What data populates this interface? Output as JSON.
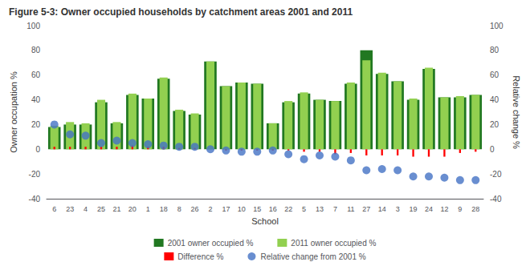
{
  "chart_data": {
    "type": "bar",
    "title": "Figure 5-3: Owner occupied households by catchment areas 2001 and 2011",
    "categories": [
      "6",
      "23",
      "4",
      "25",
      "21",
      "20",
      "1",
      "18",
      "8",
      "26",
      "2",
      "17",
      "10",
      "15",
      "16",
      "22",
      "5",
      "13",
      "7",
      "11",
      "27",
      "14",
      "3",
      "19",
      "24",
      "12",
      "9",
      "28"
    ],
    "series": [
      {
        "name": "2001 owner occupied %",
        "color": "#217821",
        "values": [
          18,
          20,
          20,
          38,
          21,
          44,
          41,
          57,
          31,
          28,
          71,
          51,
          54,
          53,
          21,
          38,
          45,
          40,
          39,
          53,
          80,
          61,
          55,
          40,
          65,
          42,
          42,
          44
        ]
      },
      {
        "name": "2011 owner occupied %",
        "color": "#92d050",
        "values": [
          19,
          22,
          21,
          40,
          22,
          45,
          41,
          58,
          32,
          29,
          71,
          51,
          54,
          53,
          21,
          39,
          46,
          40,
          39,
          54,
          72,
          62,
          55,
          41,
          66,
          42,
          43,
          44
        ]
      },
      {
        "name": "Difference %",
        "color": "#ff0000",
        "values": [
          2,
          2,
          2,
          2,
          2,
          3,
          2,
          2,
          1,
          1,
          0,
          -1,
          -1,
          -1,
          -1,
          -1,
          -2,
          -2,
          -4,
          -3,
          -5,
          -5,
          -5,
          -6,
          -6,
          -6,
          -3,
          -2
        ]
      },
      {
        "name": "Relative change from 2001 %",
        "type": "scatter",
        "marker": "circle",
        "color": "#4472c4",
        "axis": "y2",
        "values": [
          20,
          12,
          11,
          5,
          7,
          5,
          4,
          3,
          2,
          2,
          0,
          -1,
          -2,
          -2,
          -1,
          -4,
          -8,
          -5,
          -6,
          -9,
          -17,
          -16,
          -17,
          -22,
          -22,
          -23,
          -25,
          -25
        ]
      }
    ],
    "ylim": [
      -40,
      100
    ],
    "yticks": [
      -40,
      -20,
      0,
      20,
      40,
      60,
      80,
      100
    ],
    "y2lim": [
      -40,
      100
    ],
    "y2ticks": [
      -40,
      -20,
      0,
      20,
      40,
      60,
      80,
      100
    ],
    "ylabel": "Owner occupation %",
    "y2label": "Relative change %",
    "xlabel": "School",
    "grid": false,
    "legend": "bottom"
  }
}
